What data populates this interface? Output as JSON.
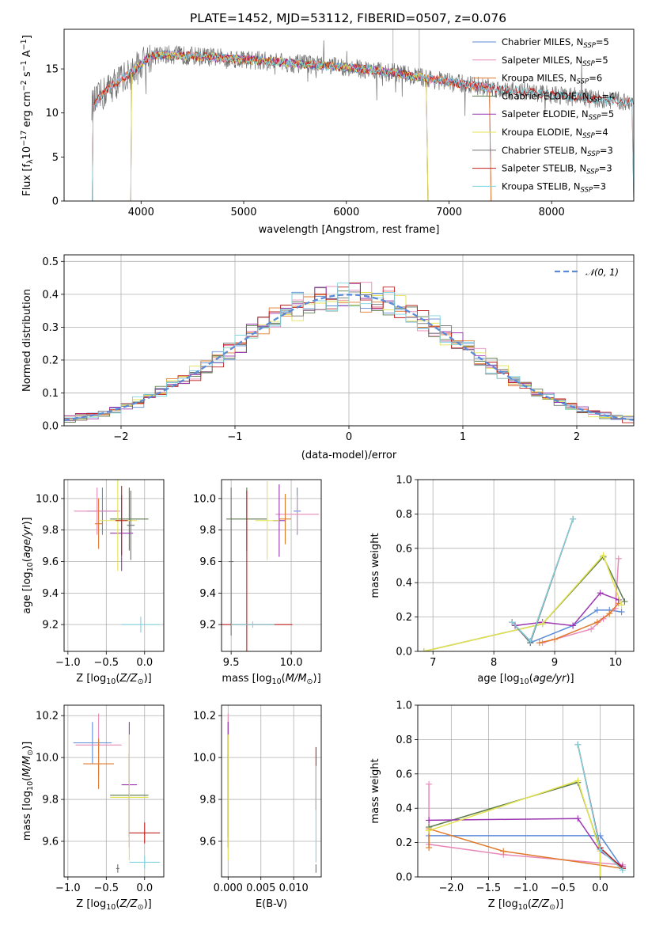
{
  "colors": [
    "#5b8bd6",
    "#e889b8",
    "#e07a2c",
    "#5d7a4c",
    "#9b35b0",
    "#e3e34f",
    "#707070",
    "#c0201f",
    "#7ed3df"
  ],
  "chart_data": [
    {
      "id": "spectrum",
      "type": "line",
      "title": "PLATE=1452, MJD=53112, FIBERID=0507, z=0.076",
      "xlabel": "wavelength [Angstrom, rest frame]",
      "ylabel": "Flux [f_λ 10^-17 erg cm^-2 s^-1 A^-1]",
      "xlim": [
        3250,
        8800
      ],
      "ylim": [
        0,
        19.5
      ],
      "xticks": [
        "4000",
        "5000",
        "6000",
        "7000",
        "8000"
      ],
      "yticks": [
        "0",
        "5",
        "10",
        "15"
      ],
      "grid": false,
      "legend_position": "top-right",
      "legend": [
        {
          "name": "Chabrier MILES",
          "nssp": "5"
        },
        {
          "name": "Salpeter MILES",
          "nssp": "5"
        },
        {
          "name": "Kroupa MILES",
          "nssp": "6"
        },
        {
          "name": "Chabrier ELODIE",
          "nssp": "4"
        },
        {
          "name": "Salpeter ELODIE",
          "nssp": "5"
        },
        {
          "name": "Kroupa ELODIE",
          "nssp": "4"
        },
        {
          "name": "Chabrier STELIB",
          "nssp": "3"
        },
        {
          "name": "Salpeter STELIB",
          "nssp": "3"
        },
        {
          "name": "Kroupa STELIB",
          "nssp": "3"
        }
      ],
      "continuum": {
        "wavelength": [
          3500,
          3700,
          3900,
          4000,
          4100,
          4300,
          4600,
          5000,
          5500,
          6000,
          6500,
          7000,
          7500,
          8000,
          8500,
          8800
        ],
        "flux": [
          10.5,
          13.0,
          14.5,
          15.5,
          16.5,
          16.6,
          16.4,
          16.1,
          15.6,
          15.2,
          14.5,
          13.5,
          12.7,
          12.1,
          11.5,
          11.2
        ]
      },
      "observed_range": [
        3520,
        8800
      ],
      "model_ranges": {
        "MILES": [
          3525,
          7410
        ],
        "ELODIE": [
          3900,
          6795
        ],
        "STELIB": [
          3525,
          8800
        ]
      }
    },
    {
      "id": "residuals",
      "type": "histogram",
      "xlabel": "(data-model)/error",
      "ylabel": "Normed distribution",
      "xlim": [
        -2.5,
        2.5
      ],
      "ylim": [
        0,
        0.52
      ],
      "xticks": [
        "−2",
        "−1",
        "0",
        "1",
        "2"
      ],
      "yticks": [
        "0.0",
        "0.1",
        "0.2",
        "0.3",
        "0.4",
        "0.5"
      ],
      "grid": true,
      "reference_curve": {
        "name": "𝒩(0, 1)",
        "style": "dashed",
        "color": "#5b8bd6"
      },
      "bin_width": 0.1
    },
    {
      "id": "age-vs-Z",
      "type": "errorbar",
      "xlabel": "Z [log10(Z/Z☉)]",
      "ylabel": "age [log10(age/yr)]",
      "xlim": [
        -1.05,
        0.25
      ],
      "ylim": [
        9.03,
        10.12
      ],
      "xticks": [
        "−1.0",
        "−0.5",
        "0.0"
      ],
      "yticks": [
        "9.2",
        "9.4",
        "9.6",
        "9.8",
        "10.0"
      ],
      "grid": true,
      "points": [
        {
          "x": -0.55,
          "y": 9.92,
          "xerr": 0.2,
          "yerr": 0.15
        },
        {
          "x": -0.62,
          "y": 9.92,
          "xerr": 0.3,
          "yerr": 0.15
        },
        {
          "x": -0.6,
          "y": 9.84,
          "xerr": 0.05,
          "yerr": 0.16
        },
        {
          "x": -0.2,
          "y": 9.87,
          "xerr": 0.25,
          "yerr": 0.2
        },
        {
          "x": -0.3,
          "y": 9.78,
          "xerr": 0.15,
          "yerr": 0.24
        },
        {
          "x": -0.35,
          "y": 9.86,
          "xerr": 0.25,
          "yerr": 0.32
        },
        {
          "x": -0.18,
          "y": 9.83,
          "xerr": 0.05,
          "yerr": 0.22
        },
        {
          "x": -0.3,
          "y": 9.86,
          "xerr": 0.08,
          "yerr": 0.22
        },
        {
          "x": -0.05,
          "y": 9.2,
          "xerr": 0.25,
          "yerr": 0.05
        }
      ]
    },
    {
      "id": "age-vs-mass",
      "type": "errorbar",
      "xlabel": "mass [log10(M/M☉)]",
      "ylabel": "",
      "xlim": [
        9.42,
        10.25
      ],
      "ylim": [
        9.03,
        10.12
      ],
      "xticks": [
        "9.5",
        "10.0"
      ],
      "yticks": [
        "9.2",
        "9.4",
        "9.6",
        "9.8",
        "10.0"
      ],
      "grid": true,
      "points": [
        {
          "x": 10.05,
          "y": 9.92,
          "xerr": 0.03,
          "yerr": 0.15
        },
        {
          "x": 10.05,
          "y": 9.9,
          "xerr": 0.18,
          "yerr": 0.12
        },
        {
          "x": 9.95,
          "y": 9.87,
          "xerr": 0.05,
          "yerr": 0.16
        },
        {
          "x": 9.63,
          "y": 9.87,
          "xerr": 0.17,
          "yerr": 0.2
        },
        {
          "x": 9.9,
          "y": 9.86,
          "xerr": 0.05,
          "yerr": 0.23
        },
        {
          "x": 9.8,
          "y": 9.86,
          "xerr": 0.1,
          "yerr": 0.25
        },
        {
          "x": 9.5,
          "y": 9.6,
          "xerr": 0.02,
          "yerr": 0.47
        },
        {
          "x": 9.63,
          "y": 9.2,
          "xerr": 0.38,
          "yerr": 0.85
        },
        {
          "x": 9.68,
          "y": 9.2,
          "xerr": 0.18,
          "yerr": 0.02
        }
      ]
    },
    {
      "id": "weight-vs-age",
      "type": "line",
      "xlabel": "age [log10(age/yr)]",
      "ylabel": "mass weight",
      "xlim": [
        6.75,
        10.3
      ],
      "ylim": [
        0,
        1.0
      ],
      "xticks": [
        "7",
        "8",
        "9",
        "10"
      ],
      "yticks": [
        "0.0",
        "0.2",
        "0.4",
        "0.6",
        "0.8",
        "1.0"
      ],
      "grid": true,
      "series": [
        {
          "x": [
            8.6,
            9.3,
            9.7,
            9.9,
            10.1
          ],
          "y": [
            0.05,
            0.15,
            0.24,
            0.24,
            0.23
          ]
        },
        {
          "x": [
            8.8,
            9.6,
            9.8,
            10.0,
            10.05
          ],
          "y": [
            0.05,
            0.13,
            0.19,
            0.25,
            0.54
          ]
        },
        {
          "x": [
            8.75,
            9.0,
            9.7,
            9.9,
            10.05
          ],
          "y": [
            0.05,
            0.07,
            0.17,
            0.22,
            0.28
          ]
        },
        {
          "x": [
            6.85,
            8.8,
            9.8,
            10.15
          ],
          "y": [
            0.0,
            0.16,
            0.55,
            0.29
          ]
        },
        {
          "x": [
            8.35,
            8.8,
            9.3,
            9.75,
            10.05
          ],
          "y": [
            0.15,
            0.17,
            0.15,
            0.34,
            0.3
          ]
        },
        {
          "x": [
            6.85,
            8.8,
            9.8,
            10.1
          ],
          "y": [
            0.0,
            0.16,
            0.56,
            0.27
          ]
        },
        {
          "x": [
            8.3,
            8.6,
            9.3
          ],
          "y": [
            0.17,
            0.05,
            0.77
          ]
        },
        {
          "x": [
            8.3,
            8.6,
            9.3
          ],
          "y": [
            0.17,
            0.06,
            0.77
          ]
        },
        {
          "x": [
            8.3,
            8.6,
            9.3
          ],
          "y": [
            0.17,
            0.06,
            0.77
          ]
        }
      ]
    },
    {
      "id": "mass-vs-Z",
      "type": "errorbar",
      "xlabel": "Z [log10(Z/Z☉)]",
      "ylabel": "mass [log10(M/M☉)]",
      "xlim": [
        -1.05,
        0.25
      ],
      "ylim": [
        9.43,
        10.25
      ],
      "xticks": [
        "−1.0",
        "−0.5",
        "0.0"
      ],
      "yticks": [
        "9.6",
        "9.8",
        "10.0",
        "10.2"
      ],
      "grid": true,
      "points": [
        {
          "x": -0.68,
          "y": 10.07,
          "xerr": 0.25,
          "yerr": 0.1
        },
        {
          "x": -0.6,
          "y": 10.06,
          "xerr": 0.3,
          "yerr": 0.15
        },
        {
          "x": -0.6,
          "y": 9.97,
          "xerr": 0.2,
          "yerr": 0.12
        },
        {
          "x": -0.2,
          "y": 9.82,
          "xerr": 0.25,
          "yerr": 0.2
        },
        {
          "x": -0.2,
          "y": 9.87,
          "xerr": 0.1,
          "yerr": 0.3
        },
        {
          "x": -0.2,
          "y": 9.81,
          "xerr": 0.25,
          "yerr": 0.3
        },
        {
          "x": -0.35,
          "y": 9.47,
          "xerr": 0.02,
          "yerr": 0.02
        },
        {
          "x": 0.0,
          "y": 9.64,
          "xerr": 0.2,
          "yerr": 0.05
        },
        {
          "x": 0.0,
          "y": 9.5,
          "xerr": 0.2,
          "yerr": 0.03
        }
      ]
    },
    {
      "id": "mass-vs-EBV",
      "type": "errorbar",
      "xlabel": "E(B-V)",
      "ylabel": "",
      "xlim": [
        -0.001,
        0.0142
      ],
      "ylim": [
        9.43,
        10.25
      ],
      "xticks": [
        "0.000",
        "0.005",
        "0.010"
      ],
      "yticks": [
        "9.6",
        "9.8",
        "10.0",
        "10.2"
      ],
      "grid": true,
      "points": [
        {
          "x": 0.0,
          "y": 10.07,
          "xerr": 0,
          "yerr": 0.1
        },
        {
          "x": 0.0,
          "y": 10.06,
          "xerr": 0,
          "yerr": 0.15
        },
        {
          "x": 0.0,
          "y": 9.97,
          "xerr": 0,
          "yerr": 0.12
        },
        {
          "x": 0.0,
          "y": 9.82,
          "xerr": 0,
          "yerr": 0.2
        },
        {
          "x": 0.0,
          "y": 9.87,
          "xerr": 0,
          "yerr": 0.3
        },
        {
          "x": 0.0,
          "y": 9.81,
          "xerr": 0,
          "yerr": 0.3
        },
        {
          "x": 0.0134,
          "y": 9.47,
          "xerr": 0,
          "yerr": 0.02
        },
        {
          "x": 0.0134,
          "y": 9.9,
          "xerr": 0,
          "yerr": 0.15
        },
        {
          "x": 0.0134,
          "y": 9.73,
          "xerr": 0,
          "yerr": 0.23
        }
      ]
    },
    {
      "id": "weight-vs-Z",
      "type": "line",
      "xlabel": "Z [log10(Z/Z☉)]",
      "ylabel": "mass weight",
      "xlim": [
        -2.45,
        0.45
      ],
      "ylim": [
        0,
        1.0
      ],
      "xticks": [
        "−2.0",
        "−1.5",
        "−1.0",
        "−0.5",
        "0.0"
      ],
      "yticks": [
        "0.0",
        "0.2",
        "0.4",
        "0.6",
        "0.8",
        "1.0"
      ],
      "grid": true,
      "series": [
        {
          "x": [
            -2.3,
            0.0,
            0.3
          ],
          "y": [
            0.24,
            0.24,
            0.05
          ]
        },
        {
          "x": [
            -2.3,
            -2.3,
            -1.3,
            0.3
          ],
          "y": [
            0.54,
            0.19,
            0.13,
            0.07
          ]
        },
        {
          "x": [
            -2.3,
            -2.3,
            -1.3,
            0.3
          ],
          "y": [
            0.17,
            0.28,
            0.15,
            0.05
          ]
        },
        {
          "x": [
            -2.3,
            -0.3,
            0.0,
            0.0
          ],
          "y": [
            0.29,
            0.55,
            0.16,
            0.0
          ]
        },
        {
          "x": [
            -2.3,
            -0.3,
            0.0,
            0.3
          ],
          "y": [
            0.33,
            0.34,
            0.15,
            0.06
          ]
        },
        {
          "x": [
            -2.3,
            -0.3,
            0.0,
            0.0
          ],
          "y": [
            0.27,
            0.56,
            0.15,
            0.0
          ]
        },
        {
          "x": [
            -0.3,
            0.0,
            0.3
          ],
          "y": [
            0.77,
            0.17,
            0.05
          ]
        },
        {
          "x": [
            -0.3,
            0.0,
            0.3
          ],
          "y": [
            0.77,
            0.17,
            0.05
          ]
        },
        {
          "x": [
            -0.3,
            0.0,
            0.3
          ],
          "y": [
            0.77,
            0.16,
            0.04
          ]
        }
      ]
    }
  ]
}
